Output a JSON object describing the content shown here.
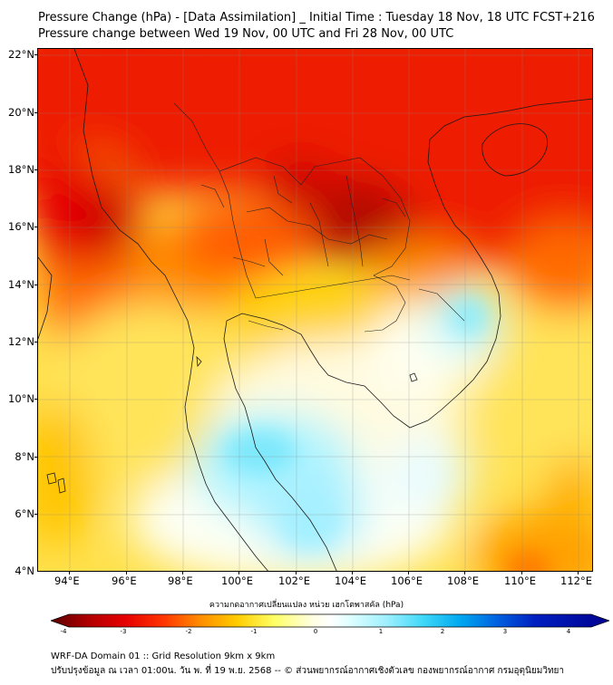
{
  "title": {
    "line1": "Pressure Change (hPa) - [Data Assimilation] _ Initial Time : Tuesday 18 Nov, 18 UTC FCST+216",
    "line2": "Pressure change between Wed 19 Nov, 00 UTC and Fri 28 Nov, 00 UTC"
  },
  "axes": {
    "lat_labels": [
      "22°N",
      "20°N",
      "18°N",
      "16°N",
      "14°N",
      "12°N",
      "10°N",
      "8°N",
      "6°N",
      "4°N"
    ],
    "lon_labels": [
      "94°E",
      "96°E",
      "98°E",
      "100°E",
      "102°E",
      "104°E",
      "106°E",
      "108°E",
      "110°E",
      "112°E"
    ]
  },
  "colorbar": {
    "title": "ความกดอากาศเปลี่ยนแปลง หน่วย เฮกโตพาสคัล (hPa)",
    "labels": [
      "-4",
      "-3",
      "-2",
      "-1",
      "0",
      "1",
      "2",
      "3",
      "4"
    ],
    "colors": [
      "#5a0000",
      "#b00000",
      "#e60000",
      "#ff3300",
      "#ff8c00",
      "#ffcc00",
      "#ffff66",
      "#ffffe0",
      "#ffffff",
      "#e0ffff",
      "#a0f0ff",
      "#40d8f8",
      "#00a8f0",
      "#0060e0",
      "#0020c0",
      "#000090"
    ]
  },
  "footer": {
    "line1": "WRF-DA Domain 01 :: Grid Resolution 9km x 9km",
    "line2": "ปรับปรุงข้อมูล ณ เวลา 01:00น. วัน พ. ที่ 19 พ.ย. 2568 -- © ส่วนพยากรณ์อากาศเชิงตัวเลข กองพยากรณ์อากาศ กรมอุตุนิยมวิทยา"
  }
}
